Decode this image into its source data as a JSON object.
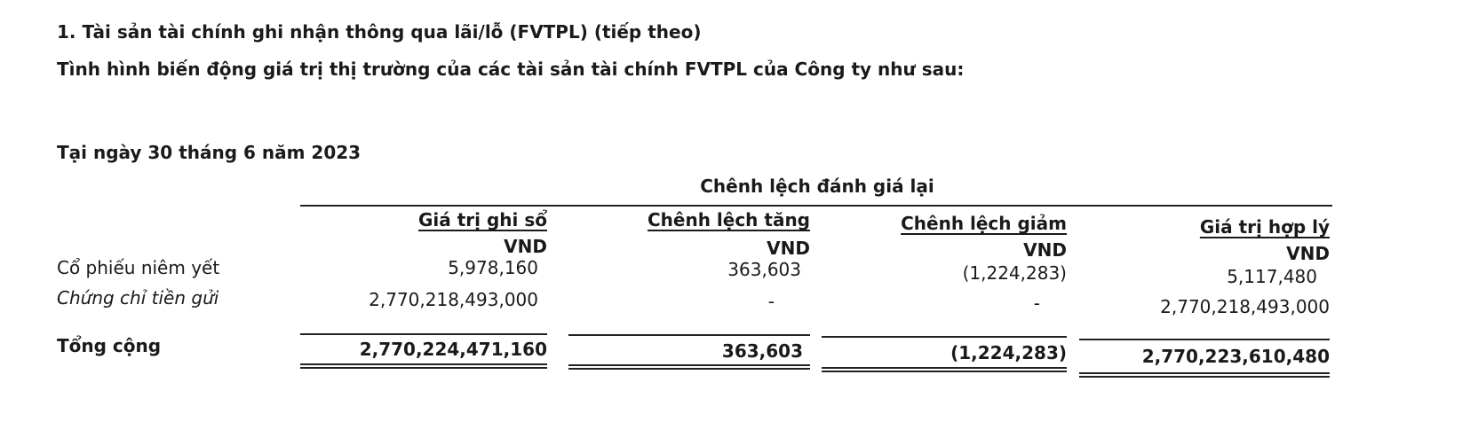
{
  "heading": "1. Tài sản tài chính ghi nhận thông qua lãi/lỗ (FVTPL) (tiếp theo)",
  "subheading": "Tình hình biến động giá trị thị trường của các tài sản tài chính FVTPL của Công ty như sau:",
  "date_label": "Tại ngày 30 tháng 6 năm 2023",
  "group_header": "Chênh lệch đánh giá lại",
  "columns": [
    {
      "label": "Giá trị ghi sổ",
      "unit": "VND"
    },
    {
      "label": "Chênh lệch tăng",
      "unit": "VND"
    },
    {
      "label": "Chênh lệch giảm",
      "unit": "VND"
    },
    {
      "label": "Giá trị hợp lý",
      "unit": "VND"
    }
  ],
  "rows": [
    {
      "label": "Cổ phiếu niêm yết",
      "values": [
        "5,978,160",
        "363,603",
        "(1,224,283)",
        "5,117,480"
      ]
    },
    {
      "label": "Chứng chỉ tiền gửi",
      "values": [
        "2,770,218,493,000",
        "-",
        "-",
        "2,770,218,493,000"
      ]
    }
  ],
  "total": {
    "label": "Tổng cộng",
    "values": [
      "2,770,224,471,160",
      "363,603",
      "(1,224,283)",
      "2,770,223,610,480"
    ]
  }
}
